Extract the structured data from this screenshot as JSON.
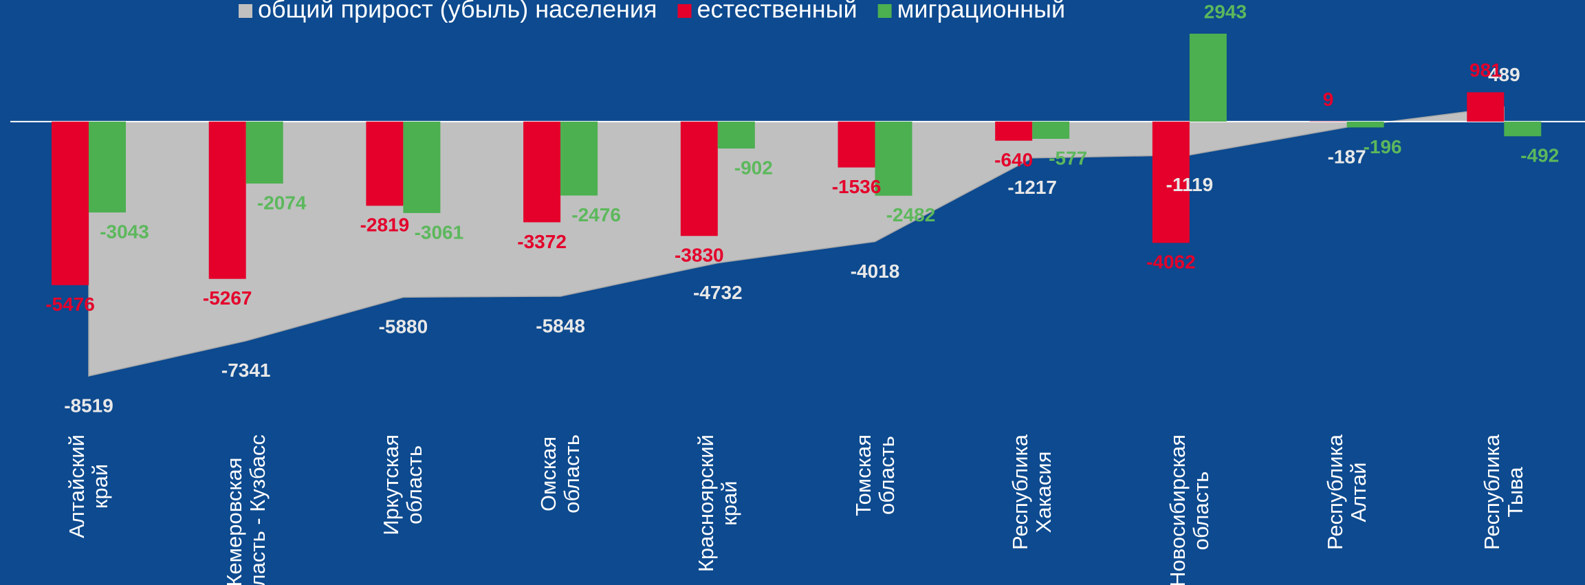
{
  "chart_data": {
    "type": "bar_area",
    "categories": [
      "Алтайский\nкрай",
      "Кемеровская\nобласть - Кузбасс",
      "Иркутская\nобласть",
      "Омская\nобласть",
      "Красноярский\nкрай",
      "Томская\nобласть",
      "Республика\nХакасия",
      "Новосибирская\nобласть",
      "Республика\nАлтай",
      "Республика\nТыва"
    ],
    "series": [
      {
        "name": "общий прирост (убыль) населения",
        "color": "#c0c0c0",
        "kind": "area",
        "label_color": "#e8e8e8",
        "values": [
          -8519,
          -7341,
          -5880,
          -5848,
          -4732,
          -4018,
          -1217,
          -1119,
          -187,
          489
        ]
      },
      {
        "name": "естественный",
        "color": "#e4002b",
        "kind": "bar",
        "label_color": "#e4002b",
        "values": [
          -5476,
          -5267,
          -2819,
          -3372,
          -3830,
          -1536,
          -640,
          -4062,
          9,
          981
        ]
      },
      {
        "name": "миграционный",
        "color": "#4caf50",
        "kind": "bar",
        "label_color": "#5cb85c",
        "values": [
          -3043,
          -2074,
          -3061,
          -2476,
          -902,
          -2482,
          -577,
          2943,
          -196,
          -492
        ]
      }
    ],
    "legend": "top"
  }
}
